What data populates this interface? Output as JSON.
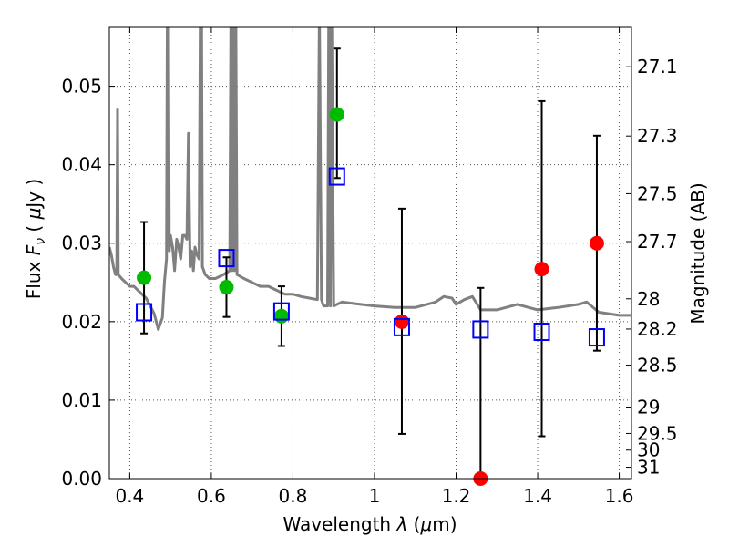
{
  "chart_data": {
    "type": "scatter",
    "xlabel": "Wavelength  λ (μm)",
    "ylabel": "Flux  F_ν  ( μJy )",
    "y2label": "Magnitude (AB)",
    "xlim": [
      0.35,
      1.63
    ],
    "ylim": [
      0.0,
      0.0575
    ],
    "grid": true,
    "x_ticks": [
      {
        "value": 0.4,
        "label": "0.4"
      },
      {
        "value": 0.6,
        "label": "0.6"
      },
      {
        "value": 0.8,
        "label": "0.8"
      },
      {
        "value": 1.0,
        "label": "1"
      },
      {
        "value": 1.2,
        "label": "1.2"
      },
      {
        "value": 1.4,
        "label": "1.4"
      },
      {
        "value": 1.6,
        "label": "1.6"
      }
    ],
    "y_ticks": [
      {
        "value": 0.0,
        "label": "0.00"
      },
      {
        "value": 0.01,
        "label": "0.01"
      },
      {
        "value": 0.02,
        "label": "0.02"
      },
      {
        "value": 0.03,
        "label": "0.03"
      },
      {
        "value": 0.04,
        "label": "0.04"
      },
      {
        "value": 0.05,
        "label": "0.05"
      }
    ],
    "mag_ticks": [
      {
        "value": 27.1,
        "label": "27.1"
      },
      {
        "value": 27.3,
        "label": "27.3"
      },
      {
        "value": 27.5,
        "label": "27.5"
      },
      {
        "value": 27.7,
        "label": "27.7"
      },
      {
        "value": 28.0,
        "label": "28"
      },
      {
        "value": 28.2,
        "label": "28.2"
      },
      {
        "value": 28.5,
        "label": "28.5"
      },
      {
        "value": 29.0,
        "label": "29"
      },
      {
        "value": 29.5,
        "label": "29.5"
      },
      {
        "value": 30.0,
        "label": "30"
      },
      {
        "value": 31.0,
        "label": "31"
      }
    ],
    "colors": {
      "model": "#808080",
      "detection": "#00bb00",
      "nondetection": "#ff0000",
      "synthetic": "#0000ff",
      "errorbar": "#000000",
      "grid": "#555555"
    },
    "model_spectrum": [
      [
        0.35,
        0.0295
      ],
      [
        0.355,
        0.0285
      ],
      [
        0.36,
        0.027
      ],
      [
        0.365,
        0.026
      ],
      [
        0.368,
        0.026
      ],
      [
        0.37,
        0.047
      ],
      [
        0.372,
        0.026
      ],
      [
        0.38,
        0.0255
      ],
      [
        0.39,
        0.025
      ],
      [
        0.4,
        0.0245
      ],
      [
        0.41,
        0.0245
      ],
      [
        0.42,
        0.024
      ],
      [
        0.43,
        0.0235
      ],
      [
        0.44,
        0.023
      ],
      [
        0.45,
        0.022
      ],
      [
        0.46,
        0.021
      ],
      [
        0.47,
        0.019
      ],
      [
        0.48,
        0.0205
      ],
      [
        0.485,
        0.025
      ],
      [
        0.49,
        0.028
      ],
      [
        0.492,
        0.06
      ],
      [
        0.495,
        0.06
      ],
      [
        0.497,
        0.029
      ],
      [
        0.5,
        0.031
      ],
      [
        0.505,
        0.0295
      ],
      [
        0.51,
        0.0265
      ],
      [
        0.515,
        0.0305
      ],
      [
        0.52,
        0.0295
      ],
      [
        0.525,
        0.028
      ],
      [
        0.53,
        0.031
      ],
      [
        0.535,
        0.031
      ],
      [
        0.54,
        0.0305
      ],
      [
        0.544,
        0.044
      ],
      [
        0.548,
        0.027
      ],
      [
        0.552,
        0.029
      ],
      [
        0.556,
        0.0265
      ],
      [
        0.56,
        0.0295
      ],
      [
        0.565,
        0.0285
      ],
      [
        0.57,
        0.028
      ],
      [
        0.573,
        0.06
      ],
      [
        0.576,
        0.06
      ],
      [
        0.578,
        0.027
      ],
      [
        0.585,
        0.026
      ],
      [
        0.595,
        0.0255
      ],
      [
        0.61,
        0.0255
      ],
      [
        0.63,
        0.026
      ],
      [
        0.645,
        0.0265
      ],
      [
        0.648,
        0.06
      ],
      [
        0.651,
        0.0265
      ],
      [
        0.654,
        0.06
      ],
      [
        0.657,
        0.0265
      ],
      [
        0.66,
        0.06
      ],
      [
        0.663,
        0.026
      ],
      [
        0.68,
        0.0255
      ],
      [
        0.7,
        0.025
      ],
      [
        0.72,
        0.0245
      ],
      [
        0.74,
        0.0245
      ],
      [
        0.76,
        0.024
      ],
      [
        0.78,
        0.0235
      ],
      [
        0.8,
        0.0235
      ],
      [
        0.82,
        0.0232
      ],
      [
        0.84,
        0.023
      ],
      [
        0.86,
        0.0228
      ],
      [
        0.865,
        0.06
      ],
      [
        0.87,
        0.0228
      ],
      [
        0.875,
        0.022
      ],
      [
        0.885,
        0.022
      ],
      [
        0.888,
        0.06
      ],
      [
        0.892,
        0.022
      ],
      [
        0.895,
        0.06
      ],
      [
        0.9,
        0.022
      ],
      [
        0.92,
        0.0225
      ],
      [
        0.95,
        0.0223
      ],
      [
        1.0,
        0.022
      ],
      [
        1.05,
        0.0218
      ],
      [
        1.1,
        0.0218
      ],
      [
        1.15,
        0.0225
      ],
      [
        1.17,
        0.0232
      ],
      [
        1.19,
        0.023
      ],
      [
        1.2,
        0.0222
      ],
      [
        1.22,
        0.0228
      ],
      [
        1.24,
        0.0232
      ],
      [
        1.26,
        0.0215
      ],
      [
        1.3,
        0.0215
      ],
      [
        1.35,
        0.0222
      ],
      [
        1.4,
        0.0215
      ],
      [
        1.45,
        0.0218
      ],
      [
        1.5,
        0.0222
      ],
      [
        1.52,
        0.0225
      ],
      [
        1.55,
        0.0212
      ],
      [
        1.6,
        0.0208
      ],
      [
        1.63,
        0.0208
      ]
    ],
    "series": [
      {
        "marker": "circle-filled",
        "color": "#00bb00",
        "points": [
          {
            "x": 0.435,
            "y": 0.0256,
            "yerr_low": 0.0185,
            "yerr_high": 0.0327
          },
          {
            "x": 0.637,
            "y": 0.0244,
            "yerr_low": 0.0206,
            "yerr_high": 0.0282
          },
          {
            "x": 0.772,
            "y": 0.0207,
            "yerr_low": 0.0169,
            "yerr_high": 0.0245
          },
          {
            "x": 0.908,
            "y": 0.0464,
            "yerr_low": 0.0383,
            "yerr_high": 0.0548
          }
        ]
      },
      {
        "marker": "circle-filled",
        "color": "#ff0000",
        "points": [
          {
            "x": 1.067,
            "y": 0.02,
            "yerr_low": 0.0057,
            "yerr_high": 0.0344
          },
          {
            "x": 1.26,
            "y": 0.0,
            "yerr_low": 0.0,
            "yerr_high": 0.0243
          },
          {
            "x": 1.41,
            "y": 0.0267,
            "yerr_low": 0.0054,
            "yerr_high": 0.0481
          },
          {
            "x": 1.545,
            "y": 0.03,
            "yerr_low": 0.0163,
            "yerr_high": 0.0437
          }
        ]
      },
      {
        "marker": "square-open",
        "color": "#0000ff",
        "points": [
          {
            "x": 0.435,
            "y": 0.0212
          },
          {
            "x": 0.637,
            "y": 0.0281
          },
          {
            "x": 0.772,
            "y": 0.0213
          },
          {
            "x": 0.908,
            "y": 0.0385
          },
          {
            "x": 1.067,
            "y": 0.0193
          },
          {
            "x": 1.26,
            "y": 0.019
          },
          {
            "x": 1.41,
            "y": 0.0187
          },
          {
            "x": 1.545,
            "y": 0.018
          }
        ]
      }
    ]
  }
}
